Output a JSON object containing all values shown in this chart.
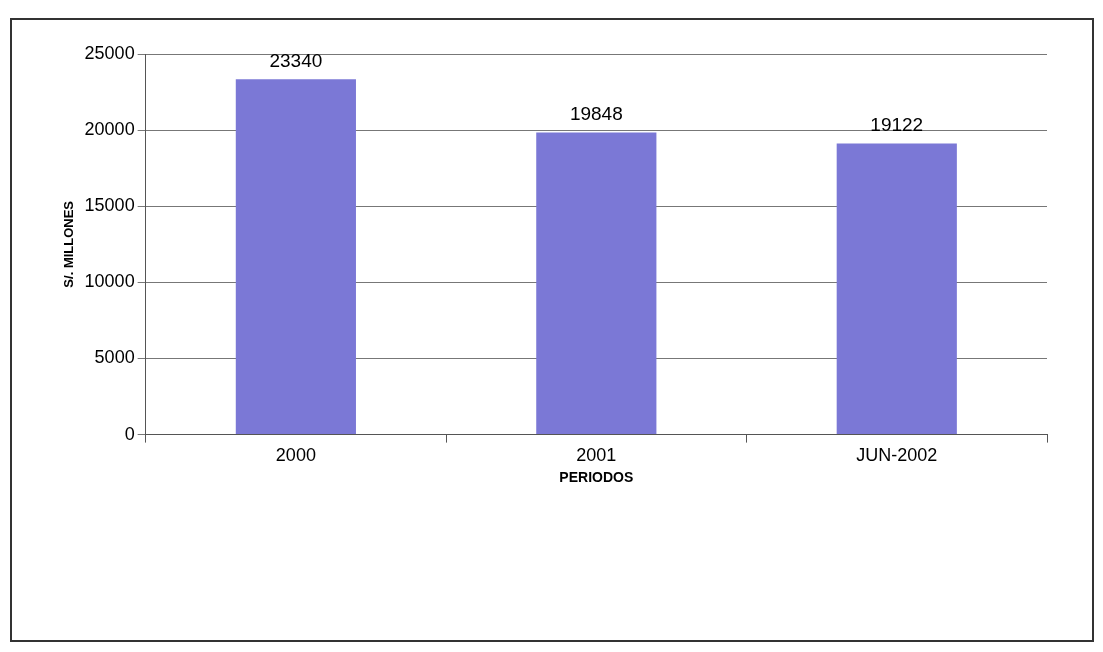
{
  "chart_data": {
    "type": "bar",
    "xlabel": "PERIODOS",
    "ylabel": "S/. MILLONES",
    "categories": [
      "2000",
      "2001",
      "JUN-2002"
    ],
    "values": [
      23340,
      19848,
      19122
    ],
    "color": "#7b78d6",
    "ylim": [
      0,
      25000
    ],
    "yticks": [
      0,
      5000,
      10000,
      15000,
      20000,
      25000
    ],
    "grid": "y",
    "data_labels": true,
    "legend": false
  }
}
